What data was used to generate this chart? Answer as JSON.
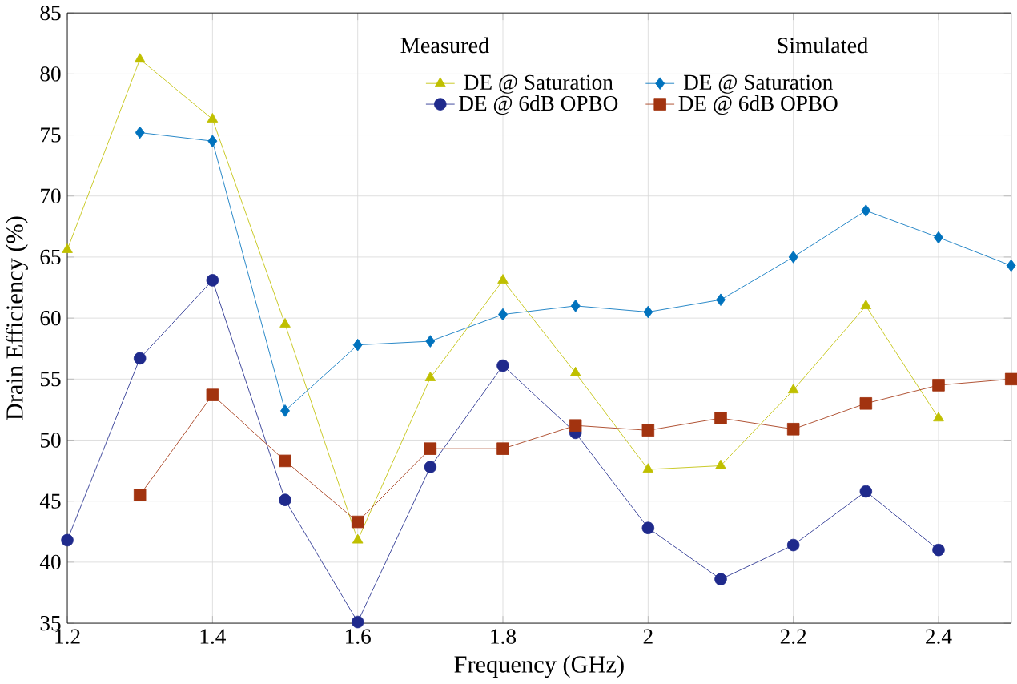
{
  "chart_data": {
    "type": "line",
    "xlabel": "Frequency (GHz)",
    "ylabel": "Drain Efficiency (%)",
    "xlim": [
      1.2,
      2.5
    ],
    "xticks": [
      1.2,
      1.4,
      1.6,
      1.8,
      2,
      2.2,
      2.4
    ],
    "ylim": [
      35,
      85
    ],
    "yticks": [
      35,
      40,
      45,
      50,
      55,
      60,
      65,
      70,
      75,
      80,
      85
    ],
    "grid": true,
    "legend": "top",
    "annotations": [
      "Measured",
      "Simulated"
    ],
    "series": [
      {
        "name": "DE @ Saturation",
        "color": "#bfbf00",
        "marker": "triangle",
        "x": [
          1.2,
          1.3,
          1.4,
          1.5,
          1.6,
          1.7,
          1.8,
          1.9,
          2.0,
          2.1,
          2.2,
          2.3,
          2.4
        ],
        "values": [
          65.6,
          81.2,
          76.3,
          59.5,
          41.8,
          55.1,
          63.1,
          55.5,
          47.6,
          47.9,
          54.1,
          61.0,
          51.8
        ]
      },
      {
        "name": "DE @ Saturation",
        "color": "#0072bd",
        "marker": "diamond",
        "x": [
          1.3,
          1.4,
          1.5,
          1.6,
          1.7,
          1.8,
          1.9,
          2.0,
          2.1,
          2.2,
          2.3,
          2.4,
          2.5
        ],
        "values": [
          75.2,
          74.5,
          52.4,
          57.8,
          58.1,
          60.3,
          61.0,
          60.5,
          61.5,
          65.0,
          68.8,
          66.6,
          64.3
        ]
      },
      {
        "name": "DE @ 6dB OPBO",
        "color": "#1f2a8c",
        "marker": "circle",
        "x": [
          1.2,
          1.3,
          1.4,
          1.5,
          1.6,
          1.7,
          1.8,
          1.9,
          2.0,
          2.1,
          2.2,
          2.3,
          2.4
        ],
        "values": [
          41.8,
          56.7,
          63.1,
          45.1,
          35.1,
          47.8,
          56.1,
          50.6,
          42.8,
          38.6,
          41.4,
          45.8,
          41.0
        ]
      },
      {
        "name": "DE @ 6dB OPBO",
        "color": "#a2330f",
        "marker": "square",
        "x": [
          1.3,
          1.4,
          1.5,
          1.6,
          1.7,
          1.8,
          1.9,
          2.0,
          2.1,
          2.2,
          2.3,
          2.4,
          2.5
        ],
        "values": [
          45.5,
          53.7,
          48.3,
          43.3,
          49.3,
          49.3,
          51.2,
          50.8,
          51.8,
          50.9,
          53.0,
          54.5,
          55.0
        ]
      }
    ]
  }
}
